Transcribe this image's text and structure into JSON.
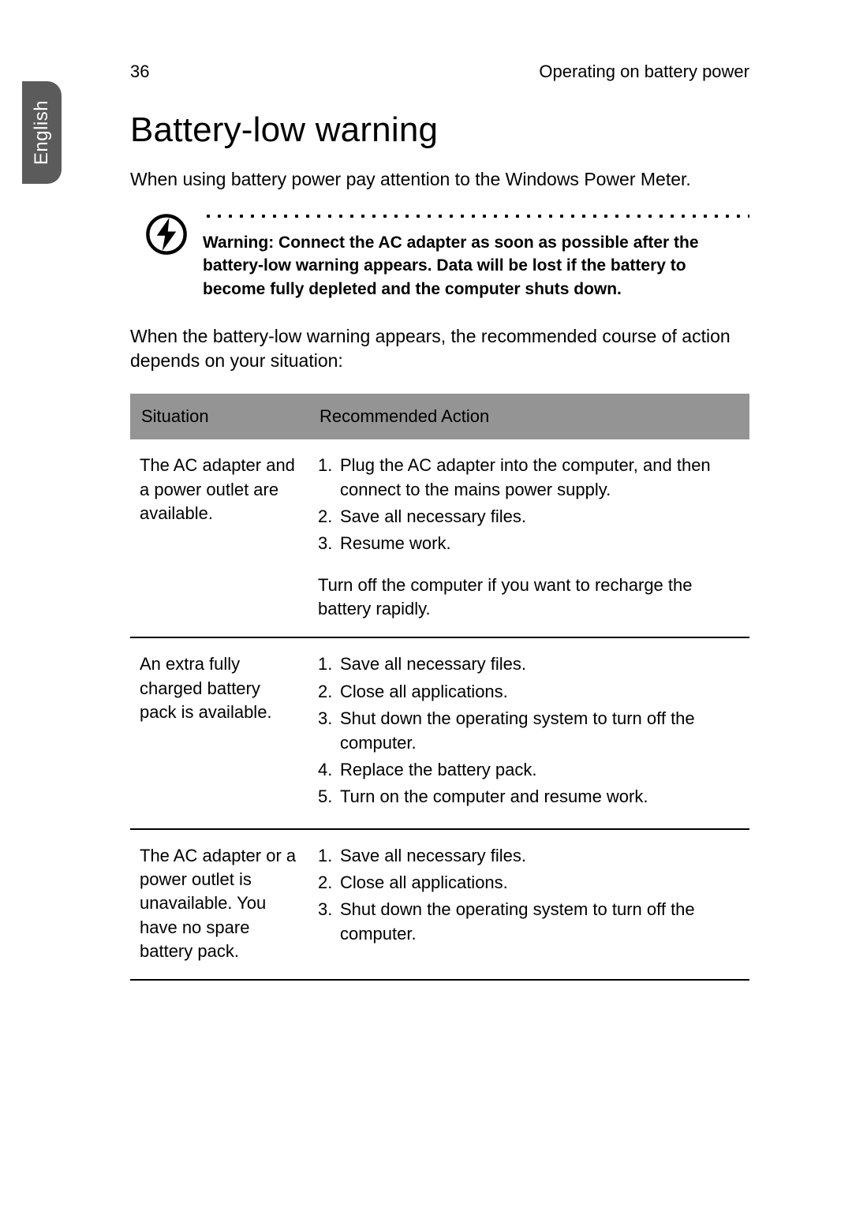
{
  "side_tab_label": "English",
  "page_number": "36",
  "running_header": "Operating on battery power",
  "section_title": "Battery-low warning",
  "intro_paragraph": "When using battery power pay attention to the Windows Power Meter.",
  "warning_text": "Warning: Connect the AC adapter as soon as possible after the battery-low warning appears. Data will be lost if the battery to become fully depleted and the computer shuts down.",
  "lead_in_paragraph": "When the battery-low warning appears, the recommended course of action depends on your situation:",
  "table": {
    "header_bg": "#949494",
    "columns": [
      "Situation",
      "Recommended Action"
    ],
    "rows": [
      {
        "situation": "The AC adapter and a power outlet are available.",
        "actions": [
          "Plug the AC adapter into the computer, and then connect to  the mains power supply.",
          "Save all necessary files.",
          "Resume work."
        ],
        "note": "Turn off the computer if you want to recharge the battery rapidly."
      },
      {
        "situation": "An extra fully charged battery pack is available.",
        "actions": [
          "Save all necessary files.",
          "Close all applications.",
          "Shut down the operating system to turn off the computer.",
          "Replace the battery pack.",
          "Turn on the computer and resume work."
        ],
        "note": ""
      },
      {
        "situation": "The AC adapter or a power outlet is unavailable. You have no spare battery pack.",
        "actions": [
          "Save all necessary files.",
          "Close all applications.",
          "Shut down the operating system to turn off the computer."
        ],
        "note": ""
      }
    ]
  },
  "colors": {
    "side_tab_bg": "#5b5b5b",
    "side_tab_text": "#ffffff",
    "page_bg": "#ffffff",
    "text": "#000000",
    "rule": "#000000"
  }
}
